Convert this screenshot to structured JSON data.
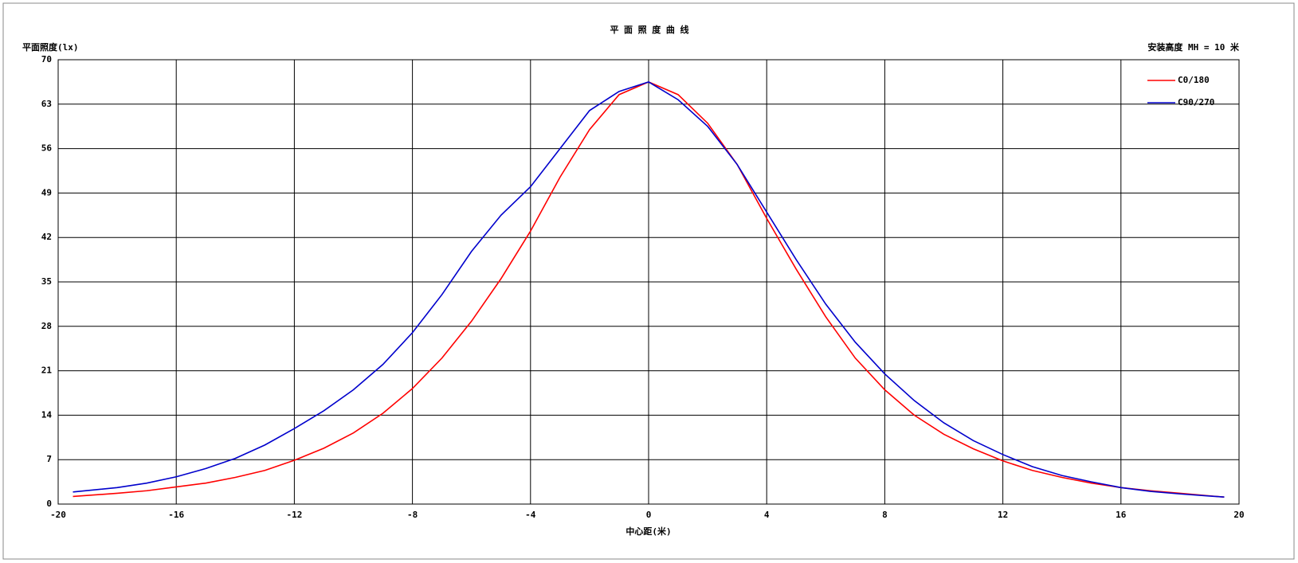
{
  "chart_data": {
    "type": "line",
    "title": "平 面 照 度 曲 线",
    "y_label": "平面照度(lx)",
    "x_label": "中心距(米)",
    "annotation": "安装高度 MH = 10 米",
    "x": [
      -19.5,
      -18,
      -17,
      -16,
      -15,
      -14,
      -13,
      -12,
      -11,
      -10,
      -9,
      -8,
      -7,
      -6,
      -5,
      -4,
      -3,
      -2,
      -1,
      0,
      1,
      2,
      3,
      4,
      5,
      6,
      7,
      8,
      9,
      10,
      11,
      12,
      13,
      14,
      15,
      16,
      17,
      18,
      19.5
    ],
    "series": [
      {
        "name": "C0/180",
        "color": "#ff0000",
        "values": [
          1.2,
          1.7,
          2.1,
          2.7,
          3.3,
          4.2,
          5.3,
          6.9,
          8.8,
          11.2,
          14.3,
          18.2,
          23,
          28.8,
          35.5,
          43,
          51.5,
          59,
          64.5,
          66.5,
          64.5,
          60,
          53.5,
          45,
          37,
          29.5,
          23,
          18,
          14,
          11,
          8.7,
          6.8,
          5.3,
          4.2,
          3.3,
          2.6,
          2.1,
          1.7,
          1.1
        ]
      },
      {
        "name": "C90/270",
        "color": "#0000cc",
        "values": [
          1.9,
          2.6,
          3.3,
          4.3,
          5.6,
          7.2,
          9.3,
          11.9,
          14.7,
          18,
          22,
          27,
          33,
          39.8,
          45.5,
          50,
          56,
          62,
          65,
          66.5,
          63.7,
          59.5,
          53.5,
          46,
          38.5,
          31.5,
          25.5,
          20.5,
          16.3,
          12.8,
          10,
          7.8,
          5.9,
          4.5,
          3.5,
          2.6,
          2,
          1.6,
          1.1
        ]
      }
    ],
    "xlim": [
      -20,
      20
    ],
    "xticks": [
      -20,
      -16,
      -12,
      -8,
      -4,
      0,
      4,
      8,
      12,
      16,
      20
    ],
    "ylim": [
      0,
      70
    ],
    "yticks": [
      0,
      7,
      14,
      21,
      28,
      35,
      42,
      49,
      56,
      63,
      70
    ],
    "grid": true,
    "legend": "upper right"
  }
}
